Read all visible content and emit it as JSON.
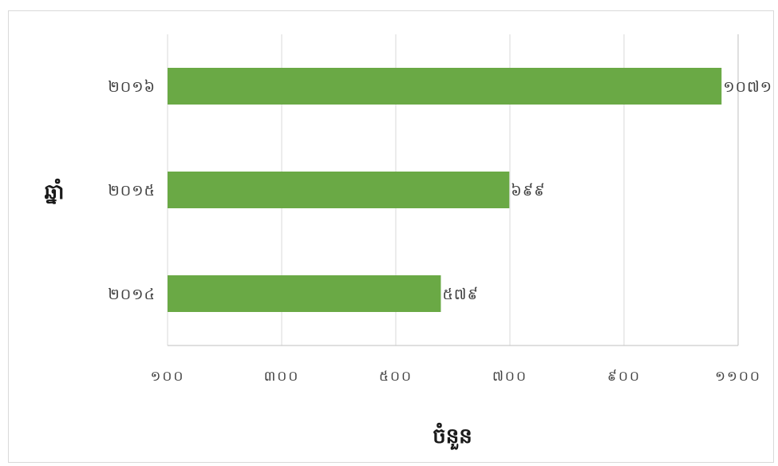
{
  "chart_data": {
    "type": "bar",
    "orientation": "horizontal",
    "title": "",
    "xlabel": "ចំនួន",
    "ylabel": "ឆ្នាំ",
    "categories": [
      "២០១៦",
      "២០១៥",
      "២០១៤"
    ],
    "values": [
      1071,
      699,
      579
    ],
    "value_labels": [
      "១០៧១",
      "៦៩៩",
      "៥៧៩"
    ],
    "xlim": [
      100,
      1100
    ],
    "xticks": [
      100,
      300,
      500,
      700,
      900,
      1100
    ],
    "xtick_labels": [
      "១០០",
      "៣០០",
      "៥០០",
      "៧០០",
      "៩០០",
      "១១០០"
    ],
    "grid": true,
    "legend": "none",
    "bar_color": "#6aa945",
    "grid_color": "#d9d9d9"
  }
}
